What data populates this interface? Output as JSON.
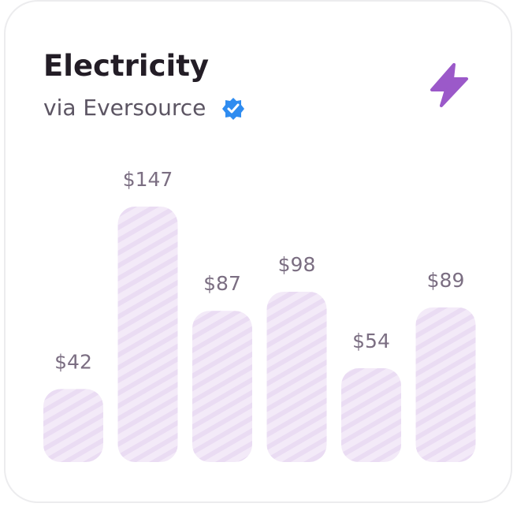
{
  "chart_data": {
    "type": "bar",
    "title": "Electricity",
    "subtitle": "via Eversource",
    "categories": [
      null,
      null,
      null,
      null,
      null,
      null
    ],
    "values": [
      42,
      147,
      87,
      98,
      54,
      89
    ],
    "value_labels": [
      "$42",
      "$147",
      "$87",
      "$98",
      "$54",
      "$89"
    ],
    "color": "#efe3f6"
  }
}
